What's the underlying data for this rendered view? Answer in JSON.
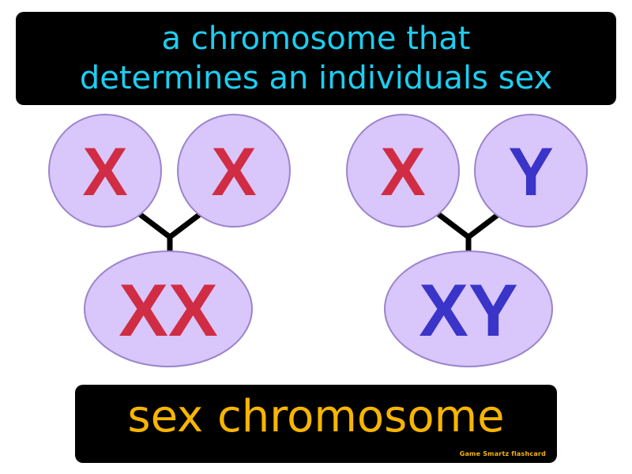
{
  "definition": {
    "line1": "a chromosome that",
    "line2": "determines an individuals sex"
  },
  "diagram": {
    "female": {
      "left": "X",
      "right": "X",
      "result": "XX"
    },
    "male": {
      "left": "X",
      "right": "Y",
      "result": "XY"
    }
  },
  "term": "sex chromosome",
  "credit": "Game Smartz flashcard",
  "colors": {
    "definition_text": "#1ecdf0",
    "term_text": "#f7b500",
    "circle_fill": "#d9c6fa",
    "circle_stroke": "#9b85cc",
    "x_letter": "#d02c44",
    "y_letter": "#3a34c8",
    "connector": "#000000",
    "box_background": "#000000"
  }
}
